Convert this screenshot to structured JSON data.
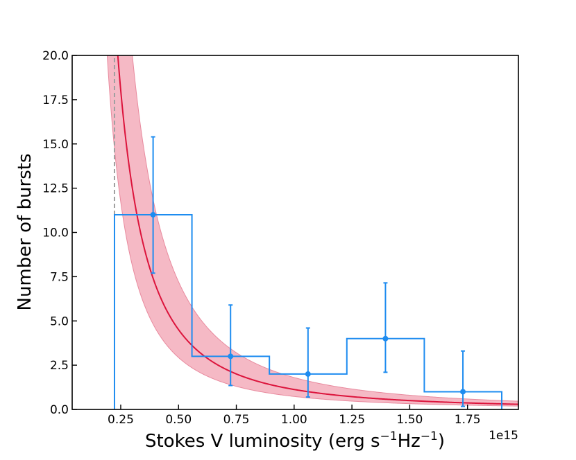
{
  "chart_data": {
    "type": "histogram-with-fit",
    "xlabel_main": "Stokes V luminosity (erg s",
    "xlabel_sup1": "−1",
    "xlabel_mid": "Hz",
    "xlabel_sup2": "−1",
    "xlabel_end": ")",
    "ylabel": "Number of bursts",
    "x_offset_label": "1e15",
    "xlim": [
      0.04,
      1.97
    ],
    "ylim": [
      0,
      20
    ],
    "x_ticks": [
      0.25,
      0.5,
      0.75,
      1.0,
      1.25,
      1.5,
      1.75
    ],
    "x_tick_labels": [
      "0.25",
      "0.50",
      "0.75",
      "1.00",
      "1.25",
      "1.50",
      "1.75"
    ],
    "y_ticks": [
      0,
      2.5,
      5,
      7.5,
      10,
      12.5,
      15,
      17.5,
      20
    ],
    "y_tick_labels": [
      "0.0",
      "2.5",
      "5.0",
      "7.5",
      "10.0",
      "12.5",
      "15.0",
      "17.5",
      "20.0"
    ],
    "histogram": {
      "bin_edges": [
        0.223,
        0.558,
        0.893,
        1.228,
        1.563,
        1.898
      ],
      "counts": [
        11,
        3,
        2,
        4,
        1
      ],
      "color": "#1e8cf0"
    },
    "error_points": {
      "x": [
        0.39,
        0.725,
        1.06,
        1.395,
        1.73
      ],
      "y": [
        11,
        3,
        2,
        4,
        1
      ],
      "yerr_low": [
        3.3,
        1.65,
        1.3,
        1.9,
        0.83
      ],
      "yerr_high": [
        4.4,
        2.9,
        2.6,
        3.15,
        2.3
      ],
      "color": "#1e8cf0"
    },
    "fit": {
      "model": "power-law",
      "amplitude_at_unit": 1.127,
      "index": 2.0,
      "band_low_factor": 0.65,
      "band_high_factor": 1.6,
      "line_color": "#dc143c",
      "band_color": "#f2a7b6"
    },
    "threshold": {
      "x": 0.223,
      "y_range": [
        11.0,
        20
      ],
      "color": "#a0a0a0"
    }
  }
}
